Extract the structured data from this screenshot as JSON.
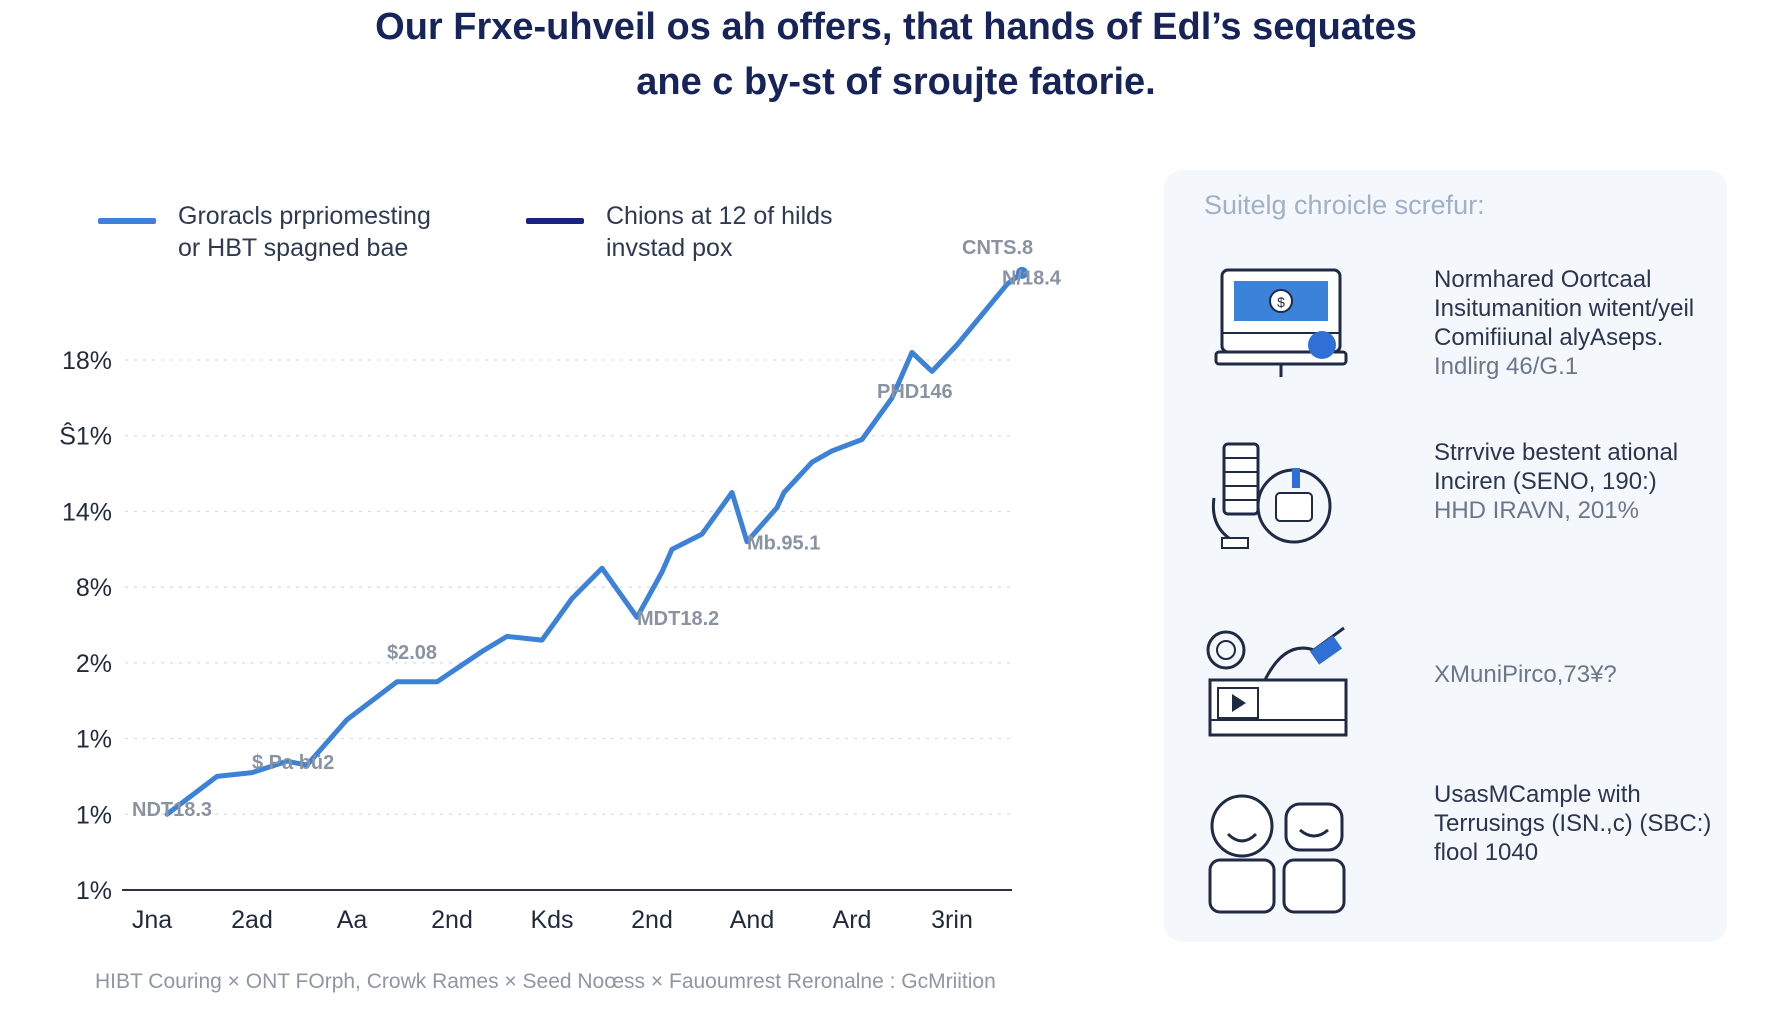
{
  "title_line1": "Our Frxe-uhveil os ah offers, that hands of Edl’s sequates",
  "title_line2": "ane c by-st of sroujte fatorie.",
  "legend": [
    {
      "line1": "Groracls prpriomesting",
      "line2": "or HBT spagned bae",
      "color": "#3b82d8"
    },
    {
      "line1": "Chions at 12 of hilds",
      "line2": "invstad pox",
      "color": "#1a237e"
    }
  ],
  "chart_data": {
    "type": "line",
    "y_tick_labels": [
      "18%",
      "Ŝ1%",
      "14%",
      "8%",
      "2%",
      "1%",
      "1%",
      "1%"
    ],
    "x_tick_labels": [
      "Jna",
      "2ad",
      "Aa",
      "2nd",
      "Kds",
      "2nd",
      "And",
      "Ard",
      "3rin"
    ],
    "series": [
      {
        "color": "#3b82d8",
        "x": [
          0.15,
          0.65,
          1.0,
          1.35,
          1.55,
          1.95,
          2.45,
          2.85,
          3.3,
          3.55,
          3.9,
          4.2,
          4.5,
          4.85,
          5.1,
          5.2,
          5.5,
          5.8,
          5.95,
          6.25,
          6.32,
          6.6,
          6.8,
          7.1,
          7.4,
          7.6,
          7.8,
          8.05,
          8.3,
          8.55,
          8.7
        ],
        "y": [
          1.0,
          1.5,
          1.55,
          1.7,
          1.65,
          2.25,
          2.75,
          2.75,
          3.15,
          3.35,
          3.3,
          3.85,
          4.25,
          3.6,
          4.2,
          4.5,
          4.7,
          5.25,
          4.6,
          5.05,
          5.25,
          5.65,
          5.8,
          5.95,
          6.5,
          7.1,
          6.85,
          7.2,
          7.6,
          8.0,
          8.15
        ]
      }
    ],
    "data_labels": [
      {
        "text": "NDT18.3",
        "x": -0.2,
        "y": 0.98
      },
      {
        "text": "$ Pa bü2",
        "x": 1.0,
        "y": 1.6
      },
      {
        "text": "$2.08",
        "x": 2.35,
        "y": 3.05
      },
      {
        "text": "MDT18.2",
        "x": 4.85,
        "y": 3.5
      },
      {
        "text": "Mb.95.1",
        "x": 5.95,
        "y": 4.5
      },
      {
        "text": "PHD146",
        "x": 7.25,
        "y": 6.5
      },
      {
        "text": "CNTS.8",
        "x": 8.1,
        "y": 8.4
      },
      {
        "text": "N/18.4",
        "x": 8.5,
        "y": 8.0
      }
    ]
  },
  "footer": "HIBT Couring × ONT FOrph, Crowk Rames × Seed Noœss × Fauoumrest Reronalne : GcMriition",
  "panel": {
    "title": "Suitelg chroicle screfur:",
    "items": [
      {
        "icon": "computer-monitor-icon",
        "line1": "Normhared Oortcaal",
        "line2": "Insitumanition witent/yeil",
        "line3": "Comifiiunal alyAseps.",
        "line4": "Indlirg 46/G.1"
      },
      {
        "icon": "server-tech-icon",
        "line1": "Strrvive bestent ational",
        "line2": "Inciren (SENO, 190:)",
        "line3": "HHD IRAVN, 201%",
        "line4": ""
      },
      {
        "icon": "workspace-tools-icon",
        "line1": "XMuniPirco,73¥?",
        "line2": "",
        "line3": "",
        "line4": ""
      },
      {
        "icon": "people-avatars-icon",
        "line1": "UsasMCample with",
        "line2": "Terrusings (ISN.,c) (SBC:)",
        "line3": "flool 1040",
        "line4": ""
      }
    ]
  }
}
